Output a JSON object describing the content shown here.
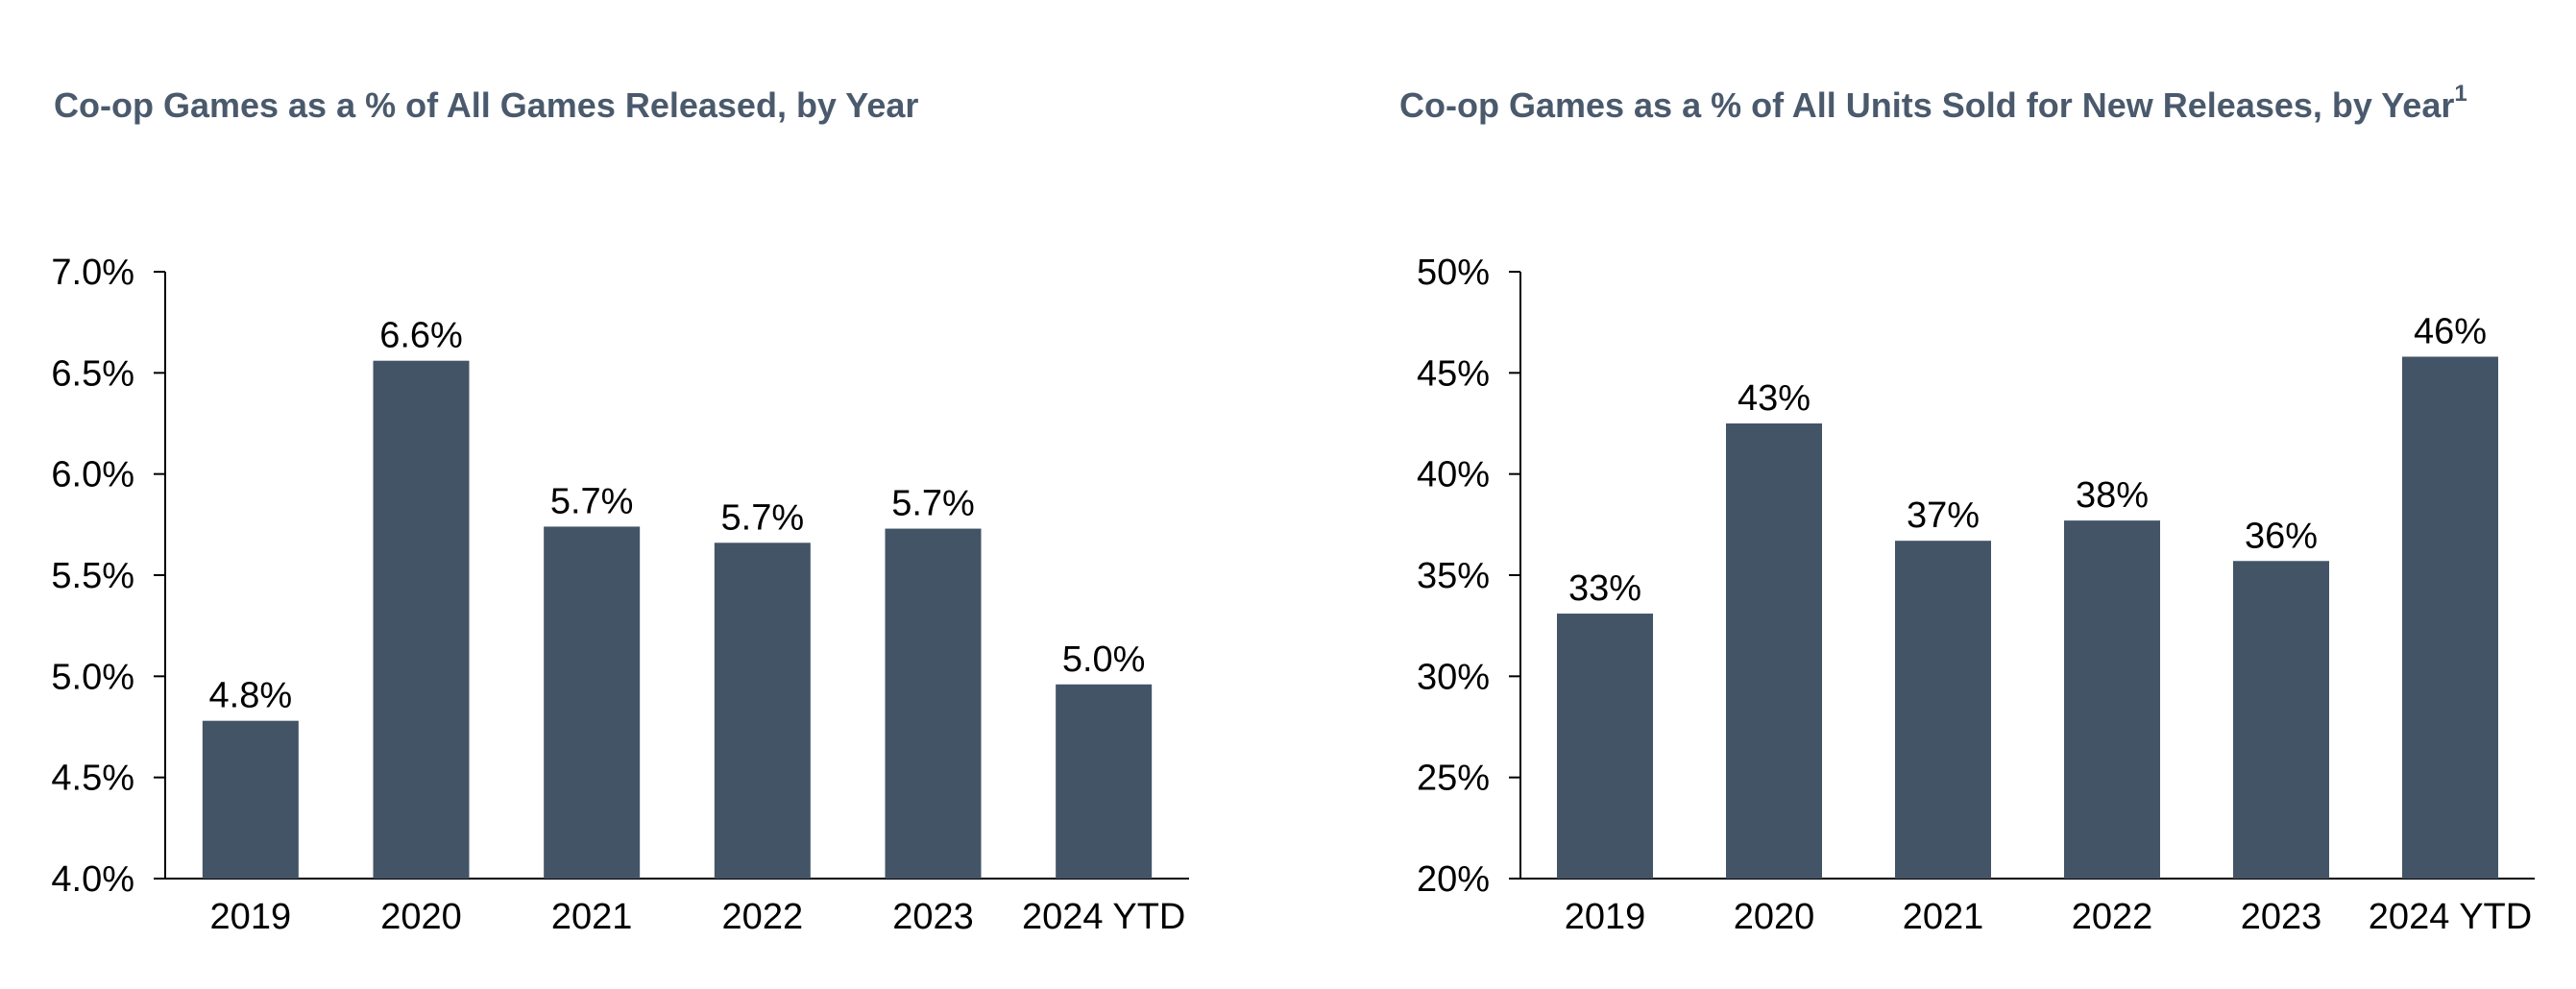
{
  "colors": {
    "bar": "#435467",
    "title": "#4a5a6c",
    "axis": "#000000"
  },
  "chart_data": [
    {
      "type": "bar",
      "title": "Co-op Games as a % of All Games Released, by Year",
      "title_footnote": "",
      "categories": [
        "2019",
        "2020",
        "2021",
        "2022",
        "2023",
        "2024 YTD"
      ],
      "values": [
        4.78,
        6.56,
        5.74,
        5.66,
        5.73,
        4.96
      ],
      "data_labels": [
        "4.8%",
        "6.6%",
        "5.7%",
        "5.7%",
        "5.7%",
        "5.0%"
      ],
      "ylim": [
        4.0,
        7.0
      ],
      "yticks": [
        4.0,
        4.5,
        5.0,
        5.5,
        6.0,
        6.5,
        7.0
      ],
      "ytick_labels": [
        "4.0%",
        "4.5%",
        "5.0%",
        "5.5%",
        "6.0%",
        "6.5%",
        "7.0%"
      ],
      "xlabel": "",
      "ylabel": "",
      "grid": false,
      "legend": "none"
    },
    {
      "type": "bar",
      "title": "Co-op Games as a % of All Units Sold for New Releases, by Year",
      "title_footnote": "1",
      "categories": [
        "2019",
        "2020",
        "2021",
        "2022",
        "2023",
        "2024 YTD"
      ],
      "values": [
        33.1,
        42.5,
        36.7,
        37.7,
        35.7,
        45.8
      ],
      "data_labels": [
        "33%",
        "43%",
        "37%",
        "38%",
        "36%",
        "46%"
      ],
      "ylim": [
        20,
        50
      ],
      "yticks": [
        20,
        25,
        30,
        35,
        40,
        45,
        50
      ],
      "ytick_labels": [
        "20%",
        "25%",
        "30%",
        "35%",
        "40%",
        "45%",
        "50%"
      ],
      "xlabel": "",
      "ylabel": "",
      "grid": false,
      "legend": "none"
    }
  ]
}
